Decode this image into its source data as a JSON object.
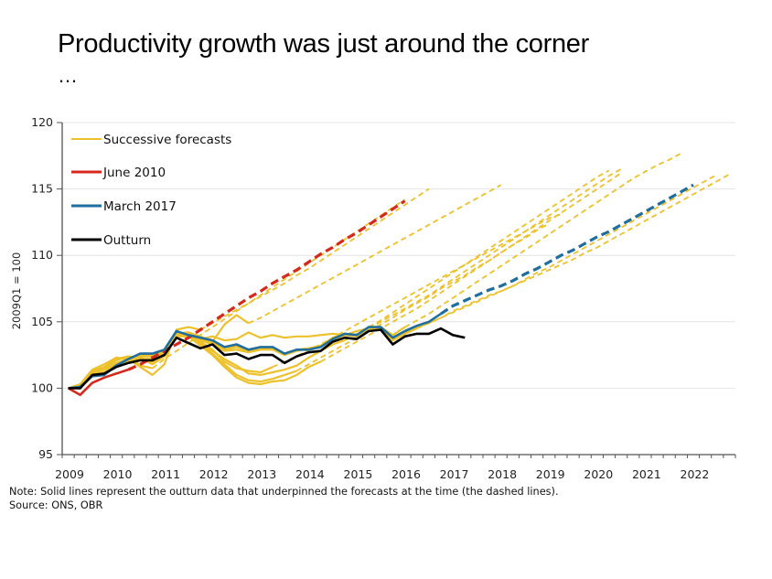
{
  "title": "Productivity growth was just around the corner",
  "title_continuation": "…",
  "note": "Note: Solid lines represent the outturn data that underpinned the forecasts at the time (the dashed lines).",
  "source": "Source: ONS, OBR",
  "colors": {
    "successive": "#EDC12C",
    "june2010": "#D4291C",
    "march2017": "#1F6E9E",
    "outturn": "#000000",
    "grid": "#E4E4E4",
    "axis": "#555555"
  },
  "chart_data": {
    "type": "line",
    "title": "Productivity growth was just around the corner",
    "xlabel": "",
    "ylabel": "2009Q1 = 100",
    "ylim": [
      95,
      120
    ],
    "yticks": [
      95,
      100,
      105,
      110,
      115,
      120
    ],
    "xlim": [
      "2009Q1",
      "2022Q4"
    ],
    "xticks": [
      "2009",
      "2010",
      "2011",
      "2012",
      "2013",
      "2014",
      "2015",
      "2016",
      "2017",
      "2018",
      "2019",
      "2020",
      "2021",
      "2022"
    ],
    "grid": true,
    "legend": {
      "placement": "top-left",
      "entries": [
        {
          "label": "Successive forecasts",
          "series": "successive"
        },
        {
          "label": "June 2010",
          "series": "june2010"
        },
        {
          "label": "March 2017",
          "series": "march2017"
        },
        {
          "label": "Outturn",
          "series": "outturn"
        }
      ]
    },
    "x_unit": "quarter index from 2009Q1 (0 = 2009Q1)",
    "series": [
      {
        "name": "Outturn",
        "key": "outturn",
        "style": "solid",
        "start_q": 0,
        "values": [
          100.0,
          100.0,
          101.0,
          101.1,
          101.6,
          101.9,
          102.1,
          102.1,
          102.5,
          103.8,
          103.4,
          103.0,
          103.3,
          102.5,
          102.6,
          102.2,
          102.5,
          102.5,
          101.9,
          102.4,
          102.7,
          102.8,
          103.5,
          103.8,
          103.7,
          104.3,
          104.4,
          103.3,
          103.9,
          104.1,
          104.1,
          104.5,
          104.0,
          103.8
        ]
      },
      {
        "name": "March 2017 outturn vintage",
        "key": "march2017",
        "style": "solid",
        "start_q": 0,
        "values": [
          100.0,
          100.1,
          100.9,
          101.0,
          101.7,
          102.2,
          102.6,
          102.6,
          102.9,
          104.3,
          104.0,
          103.8,
          103.6,
          103.1,
          103.3,
          102.9,
          103.1,
          103.1,
          102.6,
          102.9,
          102.9,
          103.1,
          103.7,
          104.1,
          104.0,
          104.6,
          104.6,
          103.8,
          104.3,
          104.7,
          105.0,
          105.6
        ]
      },
      {
        "name": "March 2017 forecast",
        "key": "march2017",
        "style": "dashed",
        "start_q": 31,
        "values": [
          105.6,
          106.2,
          106.6,
          107.0,
          107.4,
          107.7,
          108.1,
          108.6,
          109.0,
          109.5,
          110.0,
          110.4,
          110.9,
          111.4,
          111.8,
          112.3,
          112.8,
          113.3,
          113.8,
          114.3,
          114.8,
          115.3
        ]
      },
      {
        "name": "June 2010 outturn vintage",
        "key": "june2010",
        "style": "solid",
        "start_q": 0,
        "values": [
          100.0,
          99.5,
          100.4,
          100.8,
          101.1,
          101.4
        ]
      },
      {
        "name": "June 2010 forecast",
        "key": "june2010",
        "style": "dashed",
        "start_q": 5,
        "values": [
          101.4,
          101.8,
          102.3,
          102.8,
          103.3,
          103.8,
          104.4,
          105.0,
          105.6,
          106.2,
          106.8,
          107.3,
          107.9,
          108.4,
          108.9,
          109.5,
          110.1,
          110.6,
          111.2,
          111.7,
          112.3,
          112.9,
          113.5,
          114.1
        ]
      }
    ],
    "successive_forecasts": [
      {
        "solid_start_q": 0,
        "solid": [
          100.0,
          100.2,
          101.2,
          101.6,
          102.2,
          102.4,
          101.7,
          101.5
        ],
        "dashed": [
          101.5,
          102.2,
          102.8,
          103.4,
          104.0,
          104.6,
          105.2,
          105.8,
          106.4,
          107.0,
          107.6,
          108.2,
          108.8,
          109.4,
          110.0,
          110.6,
          111.2,
          111.8,
          112.4,
          113.0,
          113.6,
          114.2
        ]
      },
      {
        "solid_start_q": 0,
        "solid": [
          100.0,
          100.3,
          101.4,
          101.8,
          102.3,
          102.2,
          101.6,
          101.0,
          101.8,
          104.4,
          104.6,
          104.4
        ],
        "dashed": [
          104.4,
          104.9,
          105.4,
          105.9,
          106.4,
          106.9,
          107.4,
          107.9,
          108.5,
          109.0,
          109.6,
          110.2,
          110.8,
          111.4,
          112.0,
          112.6,
          113.2,
          113.8,
          114.4,
          115.0
        ]
      },
      {
        "solid_start_q": 0,
        "solid": [
          100.0,
          100.2,
          101.3,
          101.6,
          102.1,
          102.4,
          102.3,
          101.8,
          102.4,
          104.1,
          104.2,
          103.9,
          103.5,
          104.8,
          105.5,
          104.9
        ],
        "dashed": [
          104.9,
          105.3,
          105.8,
          106.3,
          106.8,
          107.3,
          107.8,
          108.3,
          108.8,
          109.3,
          109.8,
          110.3,
          110.8,
          111.3,
          111.8,
          112.3,
          112.8,
          113.3,
          113.8,
          114.3,
          114.8,
          115.3
        ]
      },
      {
        "solid_start_q": 0,
        "solid": [
          100.0,
          100.2,
          101.2,
          101.5,
          101.9,
          102.2,
          102.3,
          102.0,
          102.5,
          104.0,
          104.2,
          103.5,
          102.9,
          102.0,
          101.5,
          101.3,
          101.2,
          101.6
        ],
        "dashed": [
          101.6,
          102.0,
          102.4,
          102.9,
          103.3,
          103.8,
          104.3,
          104.8,
          105.3,
          105.8,
          106.3,
          106.8,
          107.3,
          107.8,
          108.3,
          108.8,
          109.3,
          109.8,
          110.3,
          110.8,
          111.3,
          111.8,
          112.3,
          112.8,
          113.1
        ]
      },
      {
        "solid_start_q": 0,
        "solid": [
          100.0,
          100.1,
          101.1,
          101.4,
          101.8,
          102.1,
          102.3,
          102.0,
          102.6,
          104.2,
          104.0,
          103.3,
          102.6,
          101.8,
          101.0,
          100.6,
          100.5,
          100.7,
          101.0,
          101.3
        ],
        "dashed": [
          101.3,
          101.8,
          102.3,
          102.8,
          103.3,
          103.8,
          104.3,
          104.8,
          105.3,
          105.9,
          106.4,
          106.9,
          107.5,
          108.0,
          108.5,
          109.1,
          109.6,
          110.2,
          110.8,
          111.3,
          111.9,
          112.4
        ]
      },
      {
        "solid_start_q": 0,
        "solid": [
          100.0,
          100.0,
          101.0,
          101.2,
          101.7,
          102.0,
          102.2,
          102.0,
          102.5,
          104.0,
          103.9,
          103.2,
          102.5,
          101.6,
          100.8,
          100.4,
          100.3,
          100.5,
          100.6,
          101.0,
          101.6,
          102.0
        ],
        "dashed": [
          102.0,
          102.5,
          103.0,
          103.5,
          104.0,
          104.5,
          105.0,
          105.5,
          106.0,
          106.6,
          107.2,
          107.8,
          108.4,
          109.0,
          109.6,
          110.2,
          110.8,
          111.4,
          112.0,
          112.6,
          113.2,
          113.8,
          114.4,
          115.0,
          115.6,
          116.2
        ]
      },
      {
        "solid_start_q": 0,
        "solid": [
          100.0,
          100.0,
          100.9,
          101.2,
          101.6,
          101.9,
          102.1,
          102.0,
          102.4,
          103.9,
          104.0,
          103.4,
          102.8,
          102.2,
          101.7,
          101.1,
          101.0,
          101.2,
          101.4,
          101.7,
          102.3,
          102.8,
          103.3,
          103.6
        ],
        "dashed": [
          103.6,
          104.1,
          104.6,
          105.1,
          105.7,
          106.3,
          106.9,
          107.5,
          108.1,
          108.7,
          109.3,
          109.9,
          110.5,
          111.1,
          111.7,
          112.3,
          112.9,
          113.5,
          114.1,
          114.7,
          115.3,
          115.9,
          116.4
        ]
      },
      {
        "solid_start_q": 0,
        "solid": [
          100.0,
          100.0,
          100.9,
          101.2,
          101.7,
          102.0,
          102.2,
          102.2,
          102.6,
          104.1,
          104.2,
          103.7,
          103.9,
          103.6,
          103.7,
          104.2,
          103.8,
          104.0,
          103.8,
          103.9,
          103.9,
          104.0,
          104.1,
          104.0,
          104.3,
          104.5
        ],
        "dashed": [
          104.5,
          105.0,
          105.5,
          106.0,
          106.5,
          107.0,
          107.6,
          108.2,
          108.8,
          109.4,
          110.0,
          110.6,
          111.2,
          111.8,
          112.4,
          113.0,
          113.6,
          114.2,
          114.8,
          115.4,
          116.0,
          116.5
        ]
      },
      {
        "solid_start_q": 0,
        "solid": [
          100.0,
          100.0,
          101.0,
          101.1,
          101.6,
          101.9,
          102.2,
          102.2,
          102.5,
          103.9,
          103.9,
          103.6,
          103.3,
          102.8,
          102.9,
          102.7,
          102.9,
          102.9,
          102.5,
          102.8,
          103.0,
          103.2,
          103.8,
          104.1,
          104.0,
          104.5,
          104.6,
          104.0,
          104.6
        ],
        "dashed": [
          104.6,
          105.1,
          105.6,
          106.2,
          106.8,
          107.4,
          108.0,
          108.6,
          109.2,
          109.8,
          110.4,
          111.0,
          111.6,
          112.2,
          112.8,
          113.4,
          114.0,
          114.6,
          115.2,
          115.8,
          116.3,
          116.8,
          117.2,
          117.7
        ]
      },
      {
        "solid_start_q": 0,
        "solid": [
          100.0,
          100.1,
          101.0,
          101.2,
          101.7,
          102.1,
          102.4,
          102.4,
          102.7,
          104.2,
          104.0,
          103.7,
          103.4,
          102.9,
          103.1,
          102.8,
          103.0,
          103.0,
          102.5,
          102.9,
          103.0,
          103.1,
          103.6,
          104.0,
          103.9,
          104.4,
          104.5,
          103.6,
          104.1,
          104.5
        ],
        "dashed": [
          104.5,
          104.9,
          105.3,
          105.7,
          106.1,
          106.5,
          106.9,
          107.3,
          107.7,
          108.2,
          108.7,
          109.1,
          109.6,
          110.1,
          110.6,
          111.1,
          111.6,
          112.1,
          112.6,
          113.1,
          113.6,
          114.1,
          114.6,
          115.1,
          115.6,
          116.1
        ]
      },
      {
        "solid_start_q": 0,
        "solid": [
          100.0,
          100.1,
          101.0,
          101.1,
          101.7,
          102.2,
          102.5,
          102.5,
          102.8,
          104.2,
          103.9,
          103.7,
          103.5,
          103.0,
          103.2,
          102.8,
          103.0,
          103.0,
          102.6,
          102.9,
          103.0,
          103.2,
          103.7,
          104.1,
          104.0,
          104.5,
          104.6,
          103.7,
          104.2,
          104.6,
          104.9
        ],
        "dashed": [
          104.9,
          105.3,
          105.8,
          106.2,
          106.6,
          107.0,
          107.3,
          107.7,
          108.1,
          108.5,
          108.9,
          109.3,
          109.7,
          110.2,
          110.6,
          111.1,
          111.6,
          112.1,
          112.6,
          113.1,
          113.6,
          114.1,
          114.6,
          115.1,
          115.6,
          116.1
        ]
      }
    ]
  }
}
